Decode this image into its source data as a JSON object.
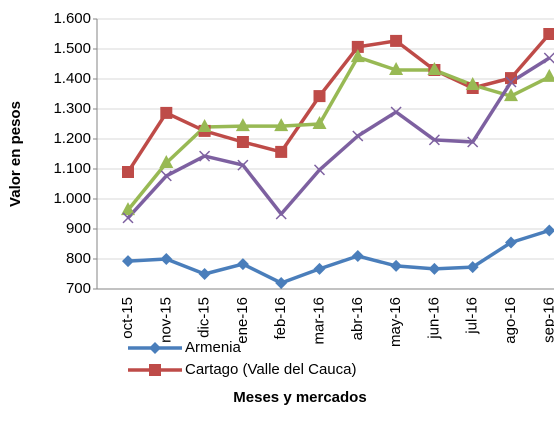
{
  "chart_data": {
    "type": "line",
    "y_label": "Valor en pesos",
    "x_label": "Meses y mercados",
    "categories": [
      "oct-15",
      "nov-15",
      "dic-15",
      "ene-16",
      "feb-16",
      "mar-16",
      "abr-16",
      "may-16",
      "jun-16",
      "jul-16",
      "ago-16",
      "sep-16"
    ],
    "series": [
      {
        "name": "Armenia",
        "color": "#4a7ebb",
        "marker": "diamond",
        "values": [
          793,
          800,
          750,
          783,
          720,
          767,
          810,
          777,
          767,
          773,
          855,
          895
        ]
      },
      {
        "name": "Cartago (Valle del Cauca)",
        "color": "#be4b48",
        "marker": "square",
        "values": [
          1090,
          1287,
          1227,
          1190,
          1157,
          1343,
          1507,
          1527,
          1430,
          1370,
          1403,
          1550
        ]
      },
      {
        "color": "#98b954",
        "marker": "triangle",
        "values": [
          963,
          1120,
          1240,
          1243,
          1243,
          1250,
          1473,
          1430,
          1430,
          1380,
          1343,
          1407
        ]
      },
      {
        "color": "#7d60a0",
        "marker": "x",
        "values": [
          937,
          1077,
          1143,
          1113,
          950,
          1097,
          1210,
          1290,
          1197,
          1190,
          1390,
          1470
        ]
      }
    ],
    "ylim": [
      700,
      1600
    ],
    "yticks": [
      {
        "value": 1600,
        "label": "1.600"
      },
      {
        "value": 1500,
        "label": "1.500"
      },
      {
        "value": 1400,
        "label": "1.400"
      },
      {
        "value": 1300,
        "label": "1.300"
      },
      {
        "value": 1200,
        "label": "1.200"
      },
      {
        "value": 1100,
        "label": "1.100"
      },
      {
        "value": 1000,
        "label": "1.000"
      },
      900,
      800,
      700
    ],
    "grid": true
  }
}
